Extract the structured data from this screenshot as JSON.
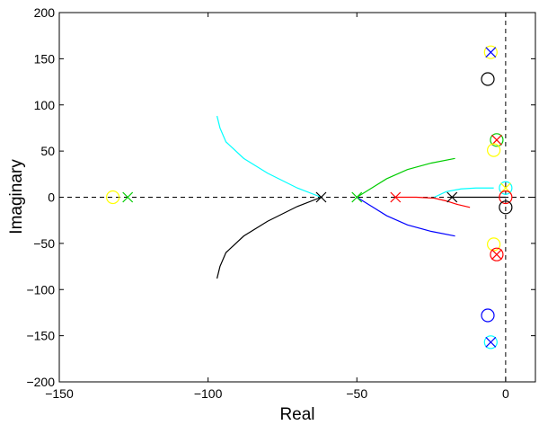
{
  "chart_data": {
    "type": "scatter",
    "title": "",
    "xlabel": "Real",
    "ylabel": "Imaginary",
    "xlim": [
      -150,
      10
    ],
    "ylim": [
      -200,
      200
    ],
    "x_ticks": [
      -150,
      -100,
      -50,
      0
    ],
    "y_ticks": [
      -200,
      -150,
      -100,
      -50,
      0,
      50,
      100,
      150,
      200
    ],
    "x_tick_labels": [
      "−150",
      "−100",
      "−50",
      "0"
    ],
    "y_tick_labels": [
      "−200",
      "−150",
      "−100",
      "−50",
      "0",
      "50",
      "100",
      "150",
      "200"
    ],
    "grid": false,
    "reference_lines": [
      {
        "orientation": "horizontal",
        "value": 0,
        "style": "dashed",
        "color": "#000000"
      },
      {
        "orientation": "vertical",
        "value": 0,
        "style": "dashed",
        "color": "#000000"
      }
    ],
    "markers": [
      {
        "symbol": "circle",
        "color": "#ffff00",
        "x": -132,
        "y": 0
      },
      {
        "symbol": "cross",
        "color": "#00cc00",
        "x": -127,
        "y": 0
      },
      {
        "symbol": "cross",
        "color": "#000000",
        "x": -62,
        "y": 0
      },
      {
        "symbol": "cross",
        "color": "#00cc00",
        "x": -50,
        "y": 0
      },
      {
        "symbol": "cross",
        "color": "#ff0000",
        "x": -37,
        "y": 0
      },
      {
        "symbol": "cross",
        "color": "#000000",
        "x": -18,
        "y": 0
      },
      {
        "symbol": "circle",
        "color": "#ffff00",
        "x": -5,
        "y": 157
      },
      {
        "symbol": "cross",
        "color": "#0000ff",
        "x": -5,
        "y": 157
      },
      {
        "symbol": "circle",
        "color": "#000000",
        "x": -6,
        "y": 128
      },
      {
        "symbol": "circle",
        "color": "#00cc00",
        "x": -3,
        "y": 62
      },
      {
        "symbol": "cross",
        "color": "#ff0000",
        "x": -3,
        "y": 62
      },
      {
        "symbol": "circle",
        "color": "#ffff00",
        "x": -4,
        "y": 51
      },
      {
        "symbol": "circle",
        "color": "#00ffff",
        "x": 0,
        "y": 10
      },
      {
        "symbol": "cross",
        "color": "#ffff00",
        "x": 0,
        "y": 10
      },
      {
        "symbol": "circle",
        "color": "#ff0000",
        "x": 0,
        "y": 0
      },
      {
        "symbol": "circle",
        "color": "#000000",
        "x": 0,
        "y": -11
      },
      {
        "symbol": "circle",
        "color": "#ffff00",
        "x": -4,
        "y": -51
      },
      {
        "symbol": "circle",
        "color": "#ff0000",
        "x": -3,
        "y": -62
      },
      {
        "symbol": "cross",
        "color": "#ff0000",
        "x": -3,
        "y": -62
      },
      {
        "symbol": "circle",
        "color": "#0000ff",
        "x": -6,
        "y": -128
      },
      {
        "symbol": "circle",
        "color": "#00ffff",
        "x": -5,
        "y": -157
      },
      {
        "symbol": "cross",
        "color": "#0000ff",
        "x": -5,
        "y": -157
      }
    ],
    "branches": [
      {
        "color": "#00ffff",
        "x": [
          -62,
          -70,
          -80,
          -88,
          -94,
          -96,
          -97
        ],
        "y": [
          0,
          10,
          26,
          42,
          60,
          75,
          88
        ]
      },
      {
        "color": "#000000",
        "x": [
          -62,
          -70,
          -80,
          -88,
          -94,
          -96,
          -97
        ],
        "y": [
          0,
          -10,
          -26,
          -42,
          -60,
          -75,
          -88
        ]
      },
      {
        "color": "#00cc00",
        "x": [
          -50,
          -45,
          -40,
          -33,
          -25,
          -17
        ],
        "y": [
          0,
          10,
          20,
          30,
          37,
          42
        ]
      },
      {
        "color": "#0000ff",
        "x": [
          -50,
          -45,
          -40,
          -33,
          -25,
          -17
        ],
        "y": [
          0,
          -10,
          -20,
          -30,
          -37,
          -42
        ]
      },
      {
        "color": "#ff0000",
        "x": [
          -37,
          -30,
          -24,
          -20,
          -16,
          -12
        ],
        "y": [
          0,
          0,
          -1,
          -4,
          -8,
          -11
        ]
      },
      {
        "color": "#00ffff",
        "x": [
          -24,
          -20,
          -15,
          -10,
          -6,
          -4
        ],
        "y": [
          0,
          6,
          9,
          10,
          10,
          10
        ]
      },
      {
        "color": "#000000",
        "x": [
          -18,
          -12,
          -6,
          -2,
          0
        ],
        "y": [
          0,
          0,
          0,
          0,
          0
        ]
      }
    ]
  }
}
